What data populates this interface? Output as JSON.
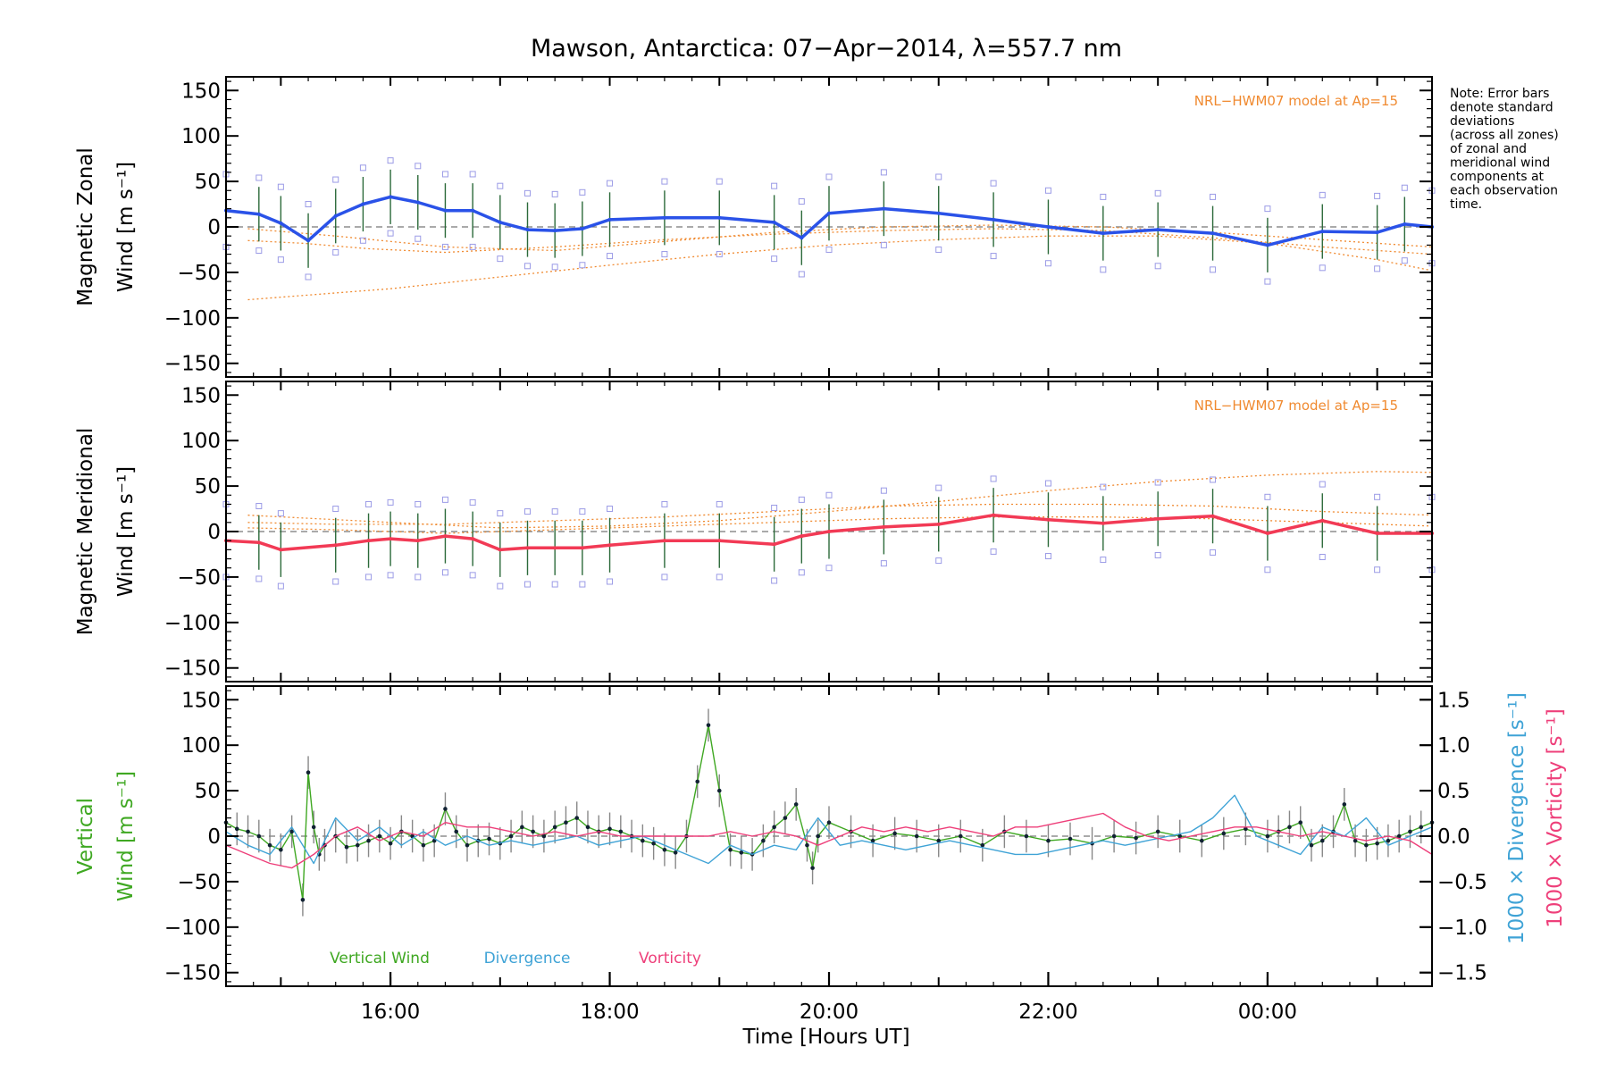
{
  "title": "Mawson, Antarctica: 07−Apr−2014, λ=557.7 nm",
  "note": [
    "Note: Error bars",
    "denote standard",
    "deviations",
    "(across all zones)",
    "of zonal and",
    "meridional wind",
    "components at",
    "each observation",
    "time."
  ],
  "colors": {
    "zonal": "#2a52e8",
    "meridional": "#f23a55",
    "vertical": "#3fa822",
    "divergence": "#3fa3d6",
    "vorticity": "#ee3f7a",
    "model": "#f08a30",
    "zone_points": "#9b9be6",
    "errorbar": "#2c6a3a"
  },
  "chart_data": [
    {
      "type": "line",
      "panel": "zonal",
      "title": "Mawson, Antarctica: 07−Apr−2014, λ=557.7 nm",
      "ylabel": "Magnetic Zonal Wind [m s⁻¹]",
      "ylabel_lines": [
        "Magnetic Zonal",
        "Wind [m s⁻¹]"
      ],
      "ylim": [
        -165,
        165
      ],
      "yticks": [
        150,
        100,
        50,
        0,
        -50,
        -100,
        -150
      ],
      "xlim": [
        14.5,
        25.5
      ],
      "annotation": "NRL−HWM07 model at Ap=15",
      "series": [
        {
          "x": [
            14.5,
            14.8,
            15.0,
            15.25,
            15.5,
            15.75,
            16.0,
            16.25,
            16.5,
            16.75,
            17.0,
            17.25,
            17.5,
            17.75,
            18.0,
            18.5,
            19.0,
            19.5,
            19.75,
            20.0,
            20.5,
            21.0,
            21.5,
            22.0,
            22.5,
            23.0,
            23.5,
            24.0,
            24.5,
            25.0,
            25.25,
            25.5
          ],
          "values": [
            18,
            14,
            4,
            -15,
            12,
            25,
            33,
            27,
            18,
            18,
            5,
            -3,
            -4,
            -2,
            8,
            10,
            10,
            5,
            -12,
            15,
            20,
            15,
            8,
            0,
            -7,
            -3,
            -7,
            -20,
            -5,
            -6,
            3,
            0
          ]
        }
      ],
      "model_curves": [
        {
          "x": [
            14.7,
            16,
            17,
            18,
            19,
            20,
            21,
            22,
            23,
            24,
            25,
            25.5
          ],
          "values": [
            -80,
            -68,
            -55,
            -42,
            -30,
            -20,
            -14,
            -10,
            -10,
            -18,
            -36,
            -48
          ]
        },
        {
          "x": [
            14.7,
            15.2,
            15.8,
            16.5,
            17.5,
            18.5,
            19.5,
            20.5,
            21.5,
            22.5,
            23.5,
            24.5,
            25.5
          ],
          "values": [
            -15,
            -18,
            -24,
            -28,
            -22,
            -14,
            -8,
            -4,
            -2,
            -4,
            -12,
            -22,
            -30
          ]
        },
        {
          "x": [
            14.7,
            15.5,
            16.5,
            17.5,
            18.5,
            19.5,
            20.5,
            21.5,
            22.5,
            23.5,
            24.5,
            25.5
          ],
          "values": [
            -2,
            -10,
            -22,
            -26,
            -16,
            -6,
            0,
            2,
            0,
            -6,
            -14,
            -22
          ]
        }
      ]
    },
    {
      "type": "line",
      "panel": "meridional",
      "ylabel": "Magnetic Meridional Wind [m s⁻¹]",
      "ylabel_lines": [
        "Magnetic Meridional",
        "Wind [m s⁻¹]"
      ],
      "ylim": [
        -165,
        165
      ],
      "yticks": [
        150,
        100,
        50,
        0,
        -50,
        -100,
        -150
      ],
      "xlim": [
        14.5,
        25.5
      ],
      "annotation": "NRL−HWM07 model at Ap=15",
      "series": [
        {
          "x": [
            14.5,
            14.8,
            15.0,
            15.5,
            15.8,
            16.0,
            16.25,
            16.5,
            16.75,
            17.0,
            17.25,
            17.5,
            17.75,
            18.0,
            18.5,
            19.0,
            19.5,
            19.75,
            20.0,
            20.5,
            21.0,
            21.5,
            22.0,
            22.5,
            23.0,
            23.5,
            24.0,
            24.5,
            25.0,
            25.5
          ],
          "values": [
            -10,
            -12,
            -20,
            -15,
            -10,
            -8,
            -10,
            -5,
            -8,
            -20,
            -18,
            -18,
            -18,
            -15,
            -10,
            -10,
            -14,
            -5,
            0,
            5,
            8,
            18,
            13,
            9,
            14,
            17,
            -2,
            12,
            -2,
            -2
          ]
        }
      ],
      "model_curves": [
        {
          "x": [
            14.7,
            16,
            17,
            18,
            19,
            20,
            21,
            22,
            23,
            24,
            25,
            25.5
          ],
          "values": [
            18,
            10,
            4,
            6,
            12,
            22,
            33,
            45,
            55,
            62,
            66,
            65
          ]
        },
        {
          "x": [
            14.7,
            15.5,
            16.5,
            17.5,
            18.5,
            19.5,
            20.5,
            21.5,
            22.5,
            23.5,
            24.5,
            25.5
          ],
          "values": [
            10,
            8,
            8,
            12,
            16,
            22,
            28,
            30,
            30,
            28,
            22,
            18
          ]
        },
        {
          "x": [
            14.7,
            15.5,
            16.5,
            17.5,
            18.5,
            19.5,
            20.5,
            21.5,
            22.5,
            23.5,
            24.5,
            25.5
          ],
          "values": [
            4,
            2,
            -2,
            2,
            6,
            10,
            14,
            16,
            16,
            14,
            10,
            6
          ]
        }
      ]
    },
    {
      "type": "line",
      "panel": "vertical",
      "xlabel": "Time [Hours UT]",
      "ylabel": "Vertical Wind [m s⁻¹]",
      "ylabel_lines": [
        "Vertical",
        "Wind [m s⁻¹]"
      ],
      "ylim": [
        -165,
        165
      ],
      "yticks": [
        150,
        100,
        50,
        0,
        -50,
        -100,
        -150
      ],
      "y2label_divergence": "1000 × Divergence [s⁻¹]",
      "y2label_vorticity": "1000 × Vorticity [s⁻¹]",
      "y2lim": [
        -1.65,
        1.65
      ],
      "y2ticks": [
        "1.5",
        "1.0",
        "0.5",
        "0.0",
        "−0.5",
        "−1.0",
        "−1.5"
      ],
      "y2tick_values": [
        1.5,
        1.0,
        0.5,
        0.0,
        -0.5,
        -1.0,
        -1.5
      ],
      "xlim": [
        14.5,
        25.5
      ],
      "xticks": [
        16,
        18,
        20,
        22,
        24
      ],
      "xticklabels": [
        "16:00",
        "18:00",
        "20:00",
        "22:00",
        "00:00"
      ],
      "legend": [
        "Vertical Wind",
        "Divergence",
        "Vorticity"
      ],
      "series": [
        {
          "name": "Vertical Wind",
          "x": [
            14.5,
            14.6,
            14.7,
            14.8,
            14.9,
            15.0,
            15.1,
            15.2,
            15.25,
            15.3,
            15.35,
            15.4,
            15.5,
            15.6,
            15.7,
            15.8,
            15.9,
            16.0,
            16.1,
            16.2,
            16.3,
            16.4,
            16.5,
            16.6,
            16.7,
            16.8,
            16.9,
            17.0,
            17.1,
            17.2,
            17.3,
            17.4,
            17.5,
            17.6,
            17.7,
            17.8,
            17.9,
            18.0,
            18.1,
            18.2,
            18.3,
            18.4,
            18.5,
            18.6,
            18.7,
            18.8,
            18.9,
            19.0,
            19.1,
            19.2,
            19.3,
            19.4,
            19.5,
            19.6,
            19.7,
            19.8,
            19.85,
            19.9,
            20.0,
            20.2,
            20.4,
            20.6,
            20.8,
            21.0,
            21.2,
            21.4,
            21.6,
            21.8,
            22.0,
            22.2,
            22.4,
            22.6,
            22.8,
            23.0,
            23.2,
            23.4,
            23.6,
            23.8,
            24.0,
            24.1,
            24.2,
            24.3,
            24.4,
            24.5,
            24.6,
            24.7,
            24.8,
            24.9,
            25.0,
            25.1,
            25.2,
            25.3,
            25.4,
            25.5
          ],
          "values": [
            15,
            8,
            5,
            0,
            -10,
            -15,
            5,
            -70,
            70,
            10,
            -20,
            -10,
            0,
            -12,
            -10,
            -5,
            0,
            -8,
            5,
            0,
            -10,
            -5,
            30,
            5,
            -10,
            -5,
            -3,
            -8,
            0,
            10,
            5,
            0,
            10,
            15,
            20,
            10,
            5,
            8,
            5,
            0,
            -5,
            -8,
            -15,
            -18,
            0,
            60,
            122,
            50,
            -15,
            -18,
            -20,
            -5,
            10,
            20,
            35,
            -10,
            -35,
            0,
            15,
            5,
            -5,
            3,
            0,
            -5,
            0,
            -10,
            5,
            0,
            -5,
            -3,
            -8,
            0,
            -2,
            5,
            0,
            -5,
            3,
            8,
            0,
            5,
            10,
            15,
            -10,
            -5,
            5,
            35,
            -5,
            -10,
            -8,
            -5,
            0,
            5,
            10,
            15
          ]
        },
        {
          "name": "Divergence",
          "x": [
            14.5,
            14.7,
            14.9,
            15.1,
            15.3,
            15.5,
            15.7,
            15.9,
            16.1,
            16.3,
            16.5,
            16.7,
            16.9,
            17.1,
            17.3,
            17.5,
            17.7,
            17.9,
            18.1,
            18.3,
            18.5,
            18.7,
            18.9,
            19.1,
            19.3,
            19.5,
            19.7,
            19.9,
            20.1,
            20.3,
            20.5,
            20.7,
            20.9,
            21.1,
            21.3,
            21.5,
            21.7,
            21.9,
            22.1,
            22.3,
            22.5,
            22.7,
            22.9,
            23.1,
            23.3,
            23.5,
            23.7,
            23.9,
            24.1,
            24.3,
            24.5,
            24.7,
            24.9,
            25.1,
            25.3,
            25.5
          ],
          "values": [
            0.05,
            -0.1,
            -0.2,
            0.1,
            -0.3,
            0.2,
            -0.05,
            0.1,
            -0.1,
            0.05,
            -0.1,
            0.0,
            -0.1,
            -0.05,
            -0.1,
            -0.05,
            0.0,
            -0.1,
            -0.05,
            0.0,
            -0.1,
            -0.2,
            -0.3,
            -0.1,
            -0.2,
            -0.1,
            -0.15,
            0.2,
            -0.1,
            -0.05,
            -0.1,
            -0.15,
            -0.1,
            -0.05,
            -0.1,
            -0.15,
            -0.2,
            -0.2,
            -0.15,
            -0.1,
            -0.05,
            -0.1,
            -0.05,
            0.0,
            0.05,
            0.2,
            0.45,
            0.0,
            -0.1,
            -0.2,
            0.1,
            0.0,
            0.2,
            -0.1,
            0.0,
            0.1
          ]
        },
        {
          "name": "Vorticity",
          "x": [
            14.5,
            14.7,
            14.9,
            15.1,
            15.3,
            15.5,
            15.7,
            15.9,
            16.1,
            16.3,
            16.5,
            16.7,
            16.9,
            17.1,
            17.3,
            17.5,
            17.7,
            17.9,
            18.1,
            18.3,
            18.5,
            18.7,
            18.9,
            19.1,
            19.3,
            19.5,
            19.7,
            19.9,
            20.1,
            20.3,
            20.5,
            20.7,
            20.9,
            21.1,
            21.3,
            21.5,
            21.7,
            21.9,
            22.1,
            22.3,
            22.5,
            22.7,
            22.9,
            23.1,
            23.3,
            23.5,
            23.7,
            23.9,
            24.1,
            24.3,
            24.5,
            24.7,
            24.9,
            25.1,
            25.3,
            25.5
          ],
          "values": [
            -0.1,
            -0.2,
            -0.3,
            -0.35,
            -0.2,
            0.0,
            0.1,
            -0.05,
            0.05,
            0.0,
            0.15,
            0.1,
            0.1,
            0.05,
            0.0,
            0.05,
            0.0,
            0.05,
            0.0,
            0.0,
            0.0,
            0.0,
            0.0,
            0.05,
            0.0,
            0.05,
            0.0,
            -0.1,
            0.0,
            0.1,
            0.05,
            0.1,
            0.05,
            0.1,
            0.05,
            0.0,
            0.1,
            0.1,
            0.15,
            0.2,
            0.25,
            0.1,
            0.0,
            -0.05,
            0.0,
            0.05,
            0.1,
            0.1,
            0.05,
            0.0,
            0.05,
            0.0,
            -0.05,
            0.0,
            -0.05,
            -0.2
          ]
        }
      ]
    }
  ]
}
